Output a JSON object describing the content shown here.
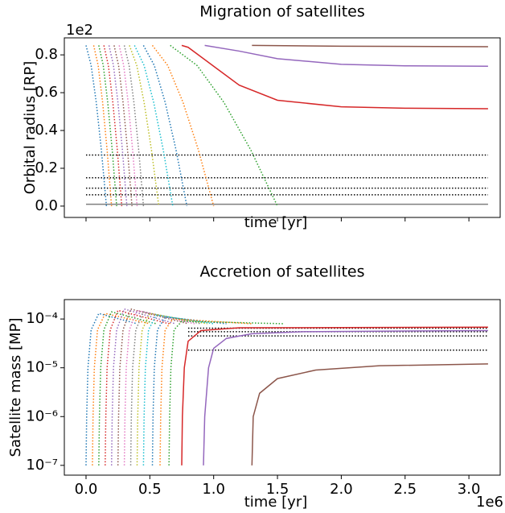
{
  "chart_data": [
    {
      "type": "line",
      "title": "Migration of satellites",
      "xlabel": "time [yr]",
      "ylabel": "Orbital radius [RP]",
      "y_offset_label": "1e2",
      "xlim": [
        -170000,
        3245000
      ],
      "ylim": [
        -6,
        89
      ],
      "log_y": false,
      "xticks": [
        0,
        500000,
        1000000,
        1500000,
        2000000,
        2500000,
        3000000
      ],
      "yticks": [
        {
          "value": 0,
          "label": "0.0"
        },
        {
          "value": 20,
          "label": "0.2"
        },
        {
          "value": 40,
          "label": "0.4"
        },
        {
          "value": 60,
          "label": "0.6"
        },
        {
          "value": 80,
          "label": "0.8"
        }
      ],
      "series": [
        {
          "color": "#7f7f7f",
          "dash": "solid",
          "x": [
            0,
            3150000
          ],
          "values": [
            1,
            1
          ]
        },
        {
          "color": "#000000",
          "dash": "dotted",
          "x": [
            0,
            3150000
          ],
          "values": [
            27,
            27
          ]
        },
        {
          "color": "#000000",
          "dash": "dotted",
          "x": [
            0,
            3150000
          ],
          "values": [
            15,
            15
          ]
        },
        {
          "color": "#000000",
          "dash": "dotted",
          "x": [
            0,
            3150000
          ],
          "values": [
            9.5,
            9.5
          ]
        },
        {
          "color": "#000000",
          "dash": "dotted",
          "x": [
            0,
            3150000
          ],
          "values": [
            6,
            6
          ]
        },
        {
          "color": "#1f77b4",
          "dash": "dotted",
          "x": [
            0,
            40000,
            80000,
            120000,
            160000
          ],
          "values": [
            85,
            74.4,
            54.9,
            29.8,
            0
          ]
        },
        {
          "color": "#ff7f0e",
          "dash": "dotted",
          "x": [
            60000,
            95000,
            130000,
            165000,
            200000
          ],
          "values": [
            85,
            74.4,
            54.9,
            29.8,
            0
          ]
        },
        {
          "color": "#2ca02c",
          "dash": "dotted",
          "x": [
            100000,
            135000,
            170000,
            205000,
            240000
          ],
          "values": [
            85,
            74.4,
            54.9,
            29.8,
            0
          ]
        },
        {
          "color": "#d62728",
          "dash": "dotted",
          "x": [
            140000,
            175000,
            210000,
            245000,
            280000
          ],
          "values": [
            85,
            74.4,
            54.9,
            29.8,
            0
          ]
        },
        {
          "color": "#9467bd",
          "dash": "dotted",
          "x": [
            180000,
            215000,
            250000,
            285000,
            320000
          ],
          "values": [
            85,
            74.4,
            54.9,
            29.8,
            0
          ]
        },
        {
          "color": "#8c564b",
          "dash": "dotted",
          "x": [
            220000,
            255000,
            290000,
            325000,
            360000
          ],
          "values": [
            85,
            74.4,
            54.9,
            29.8,
            0
          ]
        },
        {
          "color": "#e377c2",
          "dash": "dotted",
          "x": [
            260000,
            295000,
            330000,
            365000,
            400000
          ],
          "values": [
            85,
            74.4,
            54.9,
            29.8,
            0
          ]
        },
        {
          "color": "#7f7f7f",
          "dash": "dotted",
          "x": [
            300000,
            337500,
            375000,
            412500,
            450000
          ],
          "values": [
            85,
            74.4,
            54.9,
            29.8,
            0
          ]
        },
        {
          "color": "#bcbd22",
          "dash": "dotted",
          "x": [
            340000,
            397500,
            455000,
            512500,
            570000
          ],
          "values": [
            85,
            74.4,
            54.9,
            29.8,
            0
          ]
        },
        {
          "color": "#17becf",
          "dash": "dotted",
          "x": [
            380000,
            455000,
            530000,
            605000,
            680000
          ],
          "values": [
            85,
            74.4,
            54.9,
            29.8,
            0
          ]
        },
        {
          "color": "#1f77b4",
          "dash": "dotted",
          "x": [
            450000,
            535000,
            620000,
            705000,
            790000
          ],
          "values": [
            85,
            74.4,
            54.9,
            29.8,
            0
          ]
        },
        {
          "color": "#ff7f0e",
          "dash": "dotted",
          "x": [
            520000,
            640000,
            760000,
            880000,
            1000000
          ],
          "values": [
            85,
            74.4,
            54.9,
            29.8,
            0
          ]
        },
        {
          "color": "#2ca02c",
          "dash": "dotted",
          "x": [
            660000,
            870000,
            1080000,
            1290000,
            1500000
          ],
          "values": [
            85,
            74.4,
            54.9,
            29.8,
            0
          ]
        },
        {
          "color": "#d62728",
          "dash": "solid",
          "x": [
            750000,
            800000,
            1000000,
            1200000,
            1500000,
            2000000,
            2500000,
            3150000
          ],
          "values": [
            85,
            84,
            74,
            64,
            56,
            52.5,
            51.8,
            51.5
          ]
        },
        {
          "color": "#9467bd",
          "dash": "solid",
          "x": [
            930000,
            1200000,
            1500000,
            2000000,
            2500000,
            3150000
          ],
          "values": [
            85,
            82,
            78,
            75,
            74.2,
            74
          ]
        },
        {
          "color": "#8c564b",
          "dash": "solid",
          "x": [
            1300000,
            2000000,
            3150000
          ],
          "values": [
            85,
            84.6,
            84.3
          ]
        }
      ]
    },
    {
      "type": "line",
      "title": "Accretion of satellites",
      "xlabel": "time [yr]",
      "ylabel": "Satellite mass [MP]",
      "x_offset_label": "1e6",
      "xlim": [
        -170000,
        3245000
      ],
      "ylim": [
        6.3e-08,
        0.00025
      ],
      "log_y": true,
      "xticks": [
        {
          "value": 0,
          "label": "0.0"
        },
        {
          "value": 500000,
          "label": "0.5"
        },
        {
          "value": 1000000,
          "label": "1.0"
        },
        {
          "value": 1500000,
          "label": "1.5"
        },
        {
          "value": 2000000,
          "label": "2.0"
        },
        {
          "value": 2500000,
          "label": "2.5"
        },
        {
          "value": 3000000,
          "label": "3.0"
        }
      ],
      "yticks": [
        {
          "value": 1e-07,
          "label": "10⁻⁷"
        },
        {
          "value": 1e-06,
          "label": "10⁻⁶"
        },
        {
          "value": 1e-05,
          "label": "10⁻⁵"
        },
        {
          "value": 0.0001,
          "label": "10⁻⁴"
        }
      ],
      "series": [
        {
          "color": "#000000",
          "dash": "dotted",
          "x": [
            800000,
            3150000
          ],
          "values": [
            6.5e-05,
            6.5e-05
          ]
        },
        {
          "color": "#000000",
          "dash": "dotted",
          "x": [
            800000,
            3150000
          ],
          "values": [
            5.5e-05,
            5.5e-05
          ]
        },
        {
          "color": "#000000",
          "dash": "dotted",
          "x": [
            800000,
            3150000
          ],
          "values": [
            4.5e-05,
            4.5e-05
          ]
        },
        {
          "color": "#000000",
          "dash": "dotted",
          "x": [
            800000,
            3150000
          ],
          "values": [
            2.3e-05,
            2.3e-05
          ]
        },
        {
          "color": "#1f77b4",
          "dash": "dotted",
          "x": [
            0,
            5000,
            15000,
            40000,
            100000,
            400000
          ],
          "values": [
            1e-07,
            1e-06,
            1e-05,
            6e-05,
            0.00013,
            8e-05
          ]
        },
        {
          "color": "#ff7f0e",
          "dash": "dotted",
          "x": [
            50000,
            55000,
            65000,
            90000,
            150000,
            500000
          ],
          "values": [
            1e-07,
            1e-06,
            1e-05,
            6e-05,
            0.00013,
            8e-05
          ]
        },
        {
          "color": "#2ca02c",
          "dash": "dotted",
          "x": [
            100000,
            105000,
            115000,
            140000,
            200000,
            550000
          ],
          "values": [
            1e-07,
            1e-06,
            1e-05,
            6e-05,
            0.00014,
            8e-05
          ]
        },
        {
          "color": "#d62728",
          "dash": "dotted",
          "x": [
            150000,
            155000,
            165000,
            190000,
            250000,
            650000
          ],
          "values": [
            1e-07,
            1e-06,
            1e-05,
            6e-05,
            0.00015,
            8e-05
          ]
        },
        {
          "color": "#9467bd",
          "dash": "dotted",
          "x": [
            200000,
            205000,
            215000,
            240000,
            300000,
            700000
          ],
          "values": [
            1e-07,
            1e-06,
            1e-05,
            6e-05,
            0.00016,
            8e-05
          ]
        },
        {
          "color": "#8c564b",
          "dash": "dotted",
          "x": [
            250000,
            255000,
            265000,
            290000,
            350000,
            800000
          ],
          "values": [
            1e-07,
            1e-06,
            1e-05,
            6e-05,
            0.00016,
            8e-05
          ]
        },
        {
          "color": "#e377c2",
          "dash": "dotted",
          "x": [
            300000,
            305000,
            315000,
            340000,
            400000,
            850000
          ],
          "values": [
            1e-07,
            1e-06,
            1e-05,
            6e-05,
            0.00015,
            8e-05
          ]
        },
        {
          "color": "#7f7f7f",
          "dash": "dotted",
          "x": [
            350000,
            355000,
            365000,
            390000,
            450000,
            900000
          ],
          "values": [
            1e-07,
            1e-06,
            1e-05,
            6e-05,
            0.00014,
            8e-05
          ]
        },
        {
          "color": "#bcbd22",
          "dash": "dotted",
          "x": [
            400000,
            405000,
            415000,
            440000,
            500000,
            950000
          ],
          "values": [
            1e-07,
            1e-06,
            1e-05,
            6e-05,
            0.00013,
            8e-05
          ]
        },
        {
          "color": "#17becf",
          "dash": "dotted",
          "x": [
            450000,
            455000,
            465000,
            490000,
            550000,
            1000000
          ],
          "values": [
            1e-07,
            1e-06,
            1e-05,
            6e-05,
            0.00012,
            8e-05
          ]
        },
        {
          "color": "#1f77b4",
          "dash": "dotted",
          "x": [
            520000,
            525000,
            535000,
            560000,
            620000,
            1100000
          ],
          "values": [
            1e-07,
            1e-06,
            1e-05,
            6e-05,
            0.00011,
            8e-05
          ]
        },
        {
          "color": "#ff7f0e",
          "dash": "dotted",
          "x": [
            580000,
            585000,
            595000,
            620000,
            680000,
            1300000
          ],
          "values": [
            1e-07,
            1e-06,
            1e-05,
            6e-05,
            0.0001,
            8e-05
          ]
        },
        {
          "color": "#2ca02c",
          "dash": "dotted",
          "x": [
            650000,
            655000,
            665000,
            690000,
            750000,
            1550000
          ],
          "values": [
            1e-07,
            1e-06,
            1e-05,
            6e-05,
            9e-05,
            8e-05
          ]
        },
        {
          "color": "#d62728",
          "dash": "solid",
          "x": [
            750000,
            755000,
            770000,
            800000,
            900000,
            1200000,
            3150000
          ],
          "values": [
            1e-07,
            1e-06,
            1e-05,
            3.5e-05,
            5.8e-05,
            6.6e-05,
            6.8e-05
          ]
        },
        {
          "color": "#9467bd",
          "dash": "solid",
          "x": [
            920000,
            930000,
            960000,
            1000000,
            1100000,
            1300000,
            1700000,
            3150000
          ],
          "values": [
            1e-07,
            1e-06,
            1e-05,
            2.5e-05,
            4e-05,
            5e-05,
            5.5e-05,
            5.8e-05
          ]
        },
        {
          "color": "#8c564b",
          "dash": "solid",
          "x": [
            1300000,
            1310000,
            1360000,
            1500000,
            1800000,
            2300000,
            3150000
          ],
          "values": [
            1e-07,
            1e-06,
            3e-06,
            6e-06,
            9e-06,
            1.1e-05,
            1.2e-05
          ]
        }
      ]
    }
  ]
}
